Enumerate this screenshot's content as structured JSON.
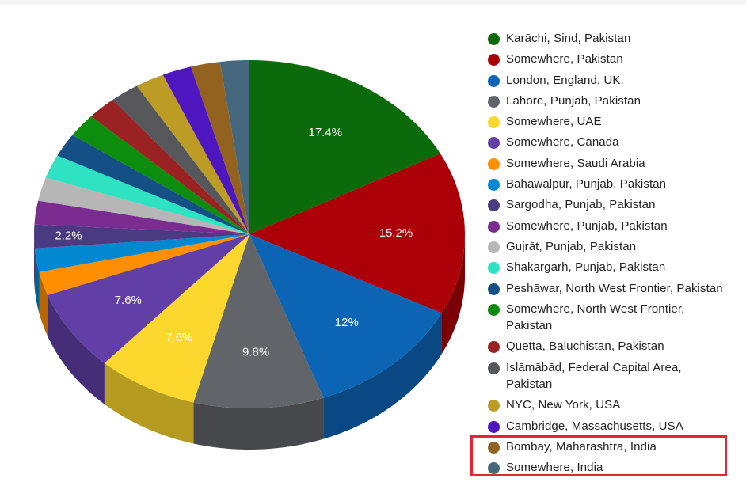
{
  "chart_data": {
    "type": "pie",
    "title": "",
    "slices": [
      {
        "label": "Karāchi, Sind, Pakistan",
        "value": 17.4,
        "color": "#0b6b0b",
        "shown_label": "17.4%"
      },
      {
        "label": "Somewhere, Pakistan",
        "value": 15.2,
        "color": "#ab0008",
        "shown_label": "15.2%"
      },
      {
        "label": "London, England, UK.",
        "value": 12,
        "color": "#0c64b4",
        "shown_label": "12%"
      },
      {
        "label": "Lahore, Punjab, Pakistan",
        "value": 9.8,
        "color": "#616469",
        "shown_label": "9.8%"
      },
      {
        "label": "Somewhere, UAE",
        "value": 7.6,
        "color": "#fcd82e",
        "shown_label": "7.6%"
      },
      {
        "label": "Somewhere, Canada",
        "value": 7.6,
        "color": "#613fa6",
        "shown_label": "7.6%"
      },
      {
        "label": "Somewhere, Saudi Arabia",
        "value": 2.2,
        "color": "#ff8f00",
        "shown_label": ""
      },
      {
        "label": "Bahāwalpur, Punjab, Pakistan",
        "value": 2.2,
        "color": "#0288d1",
        "shown_label": ""
      },
      {
        "label": "Sargodha, Punjab, Pakistan",
        "value": 2.2,
        "color": "#4a3a82",
        "shown_label": "2.2%"
      },
      {
        "label": "Somewhere, Punjab, Pakistan",
        "value": 2.2,
        "color": "#7b2c90",
        "shown_label": ""
      },
      {
        "label": "Gujrāt, Punjab, Pakistan",
        "value": 2.2,
        "color": "#b6b6b6",
        "shown_label": ""
      },
      {
        "label": "Shakargarh, Punjab, Pakistan",
        "value": 2.2,
        "color": "#2ee2c2",
        "shown_label": ""
      },
      {
        "label": "Peshāwar, North West Frontier, Pakistan",
        "value": 2.2,
        "color": "#144f86",
        "shown_label": ""
      },
      {
        "label": "Somewhere, North West Frontier, Pakistan",
        "value": 2.2,
        "color": "#0d8d0d",
        "shown_label": ""
      },
      {
        "label": "Quetta, Baluchistan, Pakistan",
        "value": 2.2,
        "color": "#9b2222",
        "shown_label": ""
      },
      {
        "label": "Islāmābād, Federal Capital Area, Pakistan",
        "value": 2.2,
        "color": "#55575a",
        "shown_label": ""
      },
      {
        "label": "NYC, New York, USA",
        "value": 2.2,
        "color": "#bd9c26",
        "shown_label": ""
      },
      {
        "label": "Cambridge, Massachusetts, USA",
        "value": 2.2,
        "color": "#4e16be",
        "shown_label": ""
      },
      {
        "label": "Bombay, Maharashtra, India",
        "value": 2.2,
        "color": "#94621f",
        "shown_label": ""
      },
      {
        "label": "Somewhere, India",
        "value": 2.2,
        "color": "#46687e",
        "shown_label": ""
      }
    ],
    "legend_position": "right",
    "three_d": true
  },
  "legend": {
    "items": [
      {
        "lines": [
          "Karāchi, Sind, Pakistan"
        ],
        "color": "#0b6b0b"
      },
      {
        "lines": [
          "Somewhere, Pakistan"
        ],
        "color": "#ab0008"
      },
      {
        "lines": [
          "London, England, UK."
        ],
        "color": "#0c64b4"
      },
      {
        "lines": [
          "Lahore, Punjab, Pakistan"
        ],
        "color": "#616469"
      },
      {
        "lines": [
          "Somewhere, UAE"
        ],
        "color": "#fcd82e"
      },
      {
        "lines": [
          "Somewhere, Canada"
        ],
        "color": "#613fa6"
      },
      {
        "lines": [
          "Somewhere, Saudi Arabia"
        ],
        "color": "#ff8f00"
      },
      {
        "lines": [
          "Bahāwalpur, Punjab, Pakistan"
        ],
        "color": "#0288d1"
      },
      {
        "lines": [
          "Sargodha, Punjab, Pakistan"
        ],
        "color": "#4a3a82"
      },
      {
        "lines": [
          "Somewhere, Punjab, Pakistan"
        ],
        "color": "#7b2c90"
      },
      {
        "lines": [
          "Gujrāt, Punjab, Pakistan"
        ],
        "color": "#b6b6b6"
      },
      {
        "lines": [
          "Shakargarh, Punjab, Pakistan"
        ],
        "color": "#2ee2c2"
      },
      {
        "lines": [
          "Peshāwar, North West Frontier, Pakistan"
        ],
        "color": "#144f86"
      },
      {
        "lines": [
          "Somewhere, North West Frontier,",
          "Pakistan"
        ],
        "color": "#0d8d0d"
      },
      {
        "lines": [
          "Quetta, Baluchistan, Pakistan"
        ],
        "color": "#9b2222"
      },
      {
        "lines": [
          "Islāmābād, Federal Capital Area,",
          "Pakistan"
        ],
        "color": "#55575a"
      },
      {
        "lines": [
          "NYC, New York, USA"
        ],
        "color": "#bd9c26"
      },
      {
        "lines": [
          "Cambridge, Massachusetts, USA"
        ],
        "color": "#4e16be"
      },
      {
        "lines": [
          "Bombay, Maharashtra, India"
        ],
        "color": "#94621f"
      },
      {
        "lines": [
          "Somewhere, India"
        ],
        "color": "#46687e"
      }
    ],
    "highlight_color": "#e3262f"
  }
}
